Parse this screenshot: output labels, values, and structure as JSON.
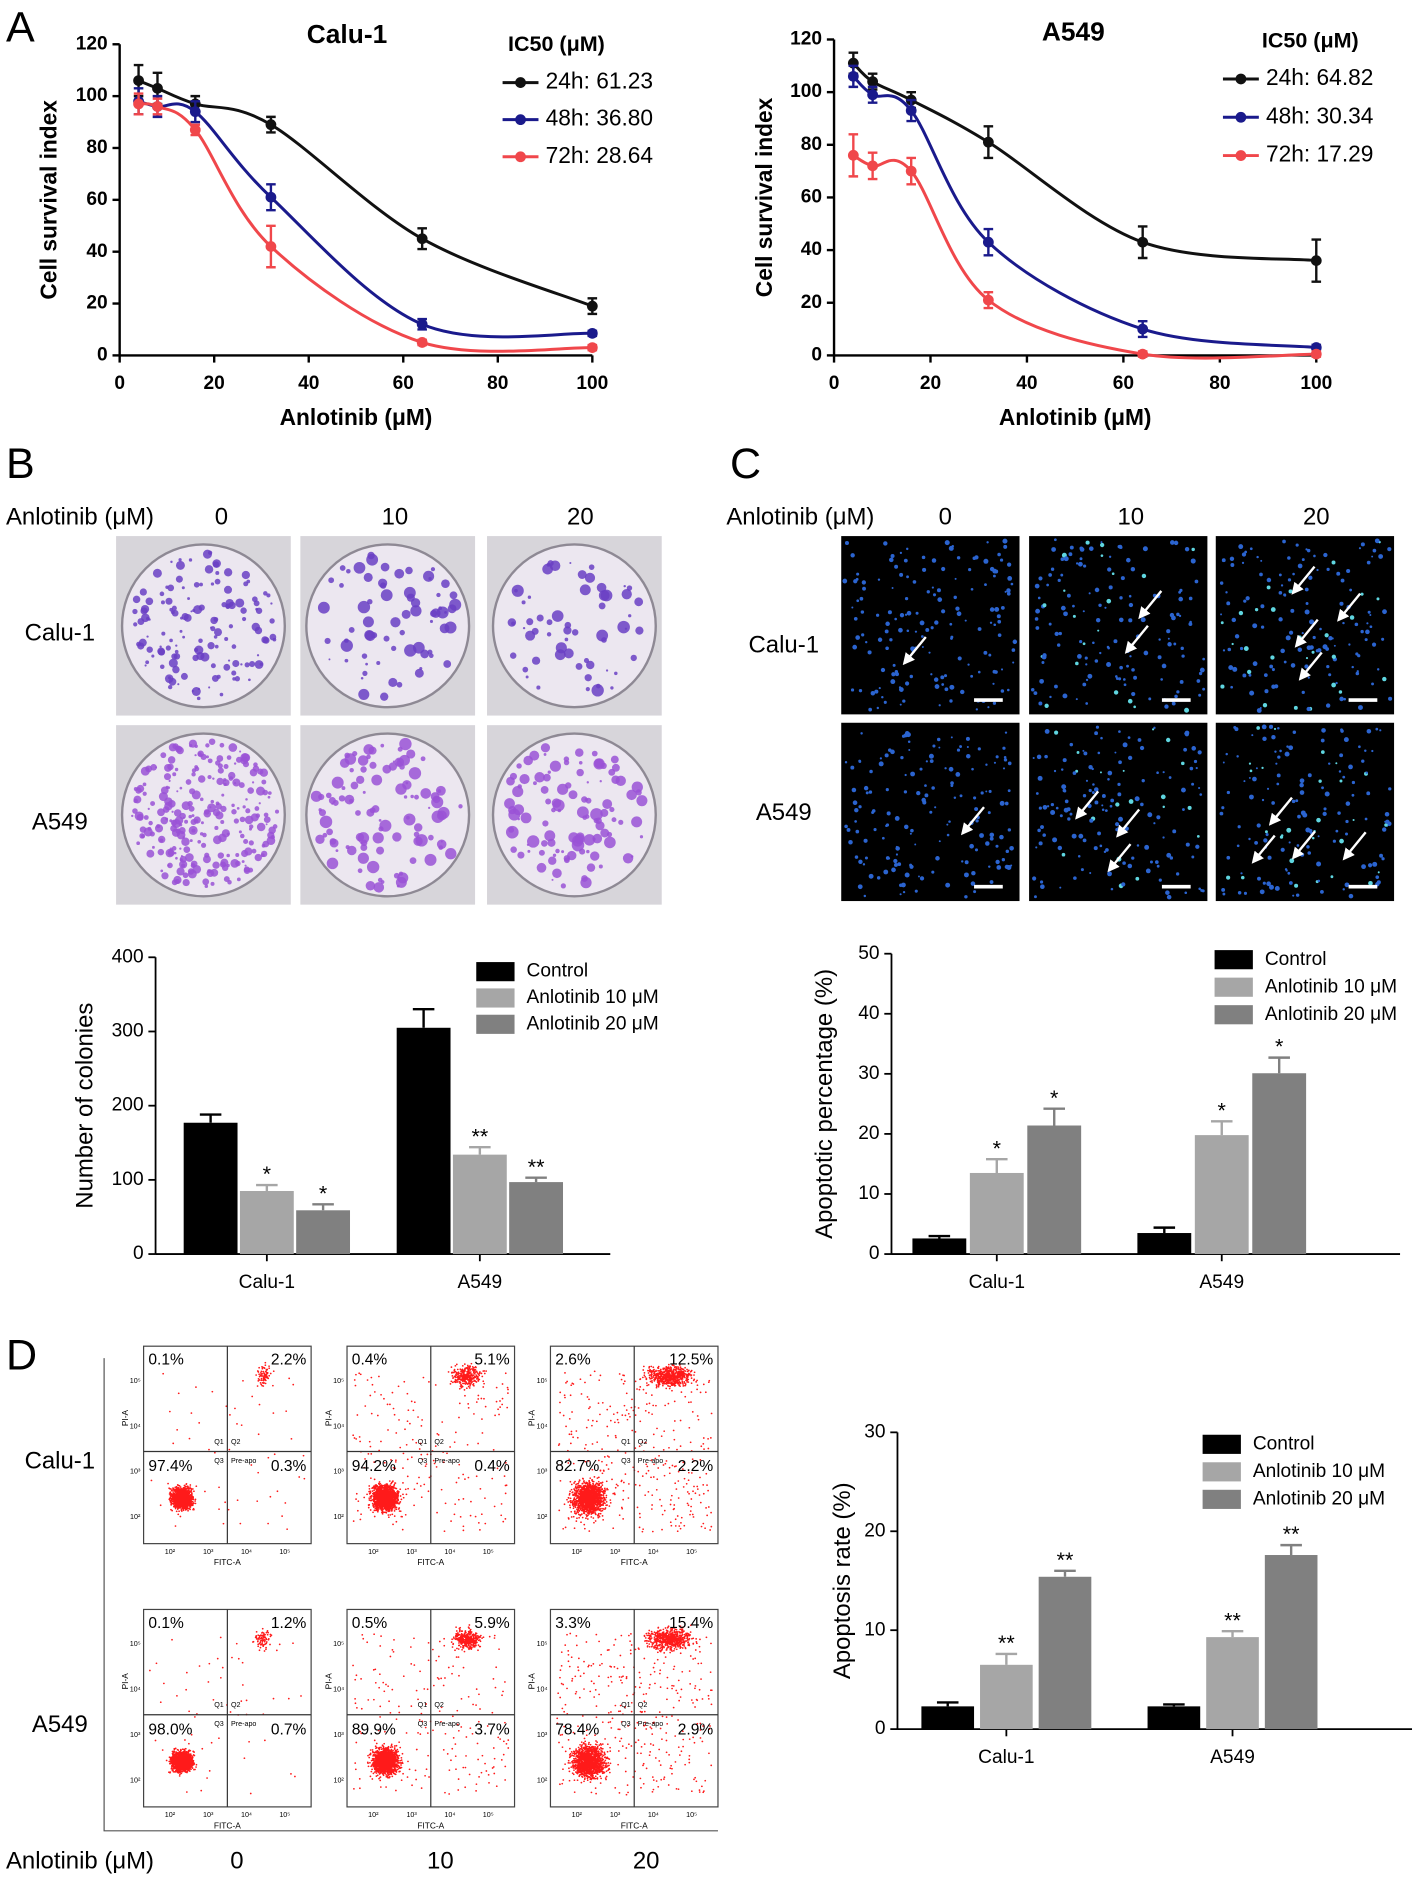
{
  "panel_labels": [
    "A",
    "B",
    "C",
    "D"
  ],
  "chart_data": [
    {
      "type": "line",
      "title": "Calu-1",
      "legend_title": "IC50 (μM)",
      "xlabel": "Anlotinib (μM)",
      "ylabel": "Cell survival index",
      "x": [
        4,
        8,
        16,
        32,
        64,
        100
      ],
      "xlim": [
        0,
        100
      ],
      "xticks": [
        0,
        20,
        40,
        60,
        80,
        100
      ],
      "ylim": [
        0,
        120
      ],
      "yticks": [
        0,
        20,
        40,
        60,
        80,
        100,
        120
      ],
      "series": [
        {
          "name": "24h: 61.23",
          "color": "#111111",
          "values": [
            106,
            103,
            97,
            89,
            45,
            19
          ],
          "errors": [
            6,
            6,
            3,
            3,
            4,
            3
          ]
        },
        {
          "name": "48h: 36.80",
          "color": "#1a1a8c",
          "values": [
            98,
            96,
            94,
            61,
            12,
            8.5
          ],
          "errors": [
            5,
            4,
            4,
            5,
            2,
            1
          ]
        },
        {
          "name": "72h: 28.64",
          "color": "#f0474b",
          "values": [
            97,
            96,
            87,
            42,
            5,
            3
          ],
          "errors": [
            4,
            3,
            2,
            8,
            1,
            1
          ]
        }
      ]
    },
    {
      "type": "line",
      "title": "A549",
      "legend_title": "IC50 (μM)",
      "xlabel": "Anlotinib (μM)",
      "ylabel": "Cell survival index",
      "x": [
        4,
        8,
        16,
        32,
        64,
        100
      ],
      "xlim": [
        0,
        100
      ],
      "xticks": [
        0,
        20,
        40,
        60,
        80,
        100
      ],
      "ylim": [
        0,
        120
      ],
      "yticks": [
        0,
        20,
        40,
        60,
        80,
        100,
        120
      ],
      "series": [
        {
          "name": "24h: 64.82",
          "color": "#111111",
          "values": [
            111,
            104,
            97,
            81,
            43,
            36
          ],
          "errors": [
            4,
            3,
            3,
            6,
            6,
            8
          ]
        },
        {
          "name": "48h: 30.34",
          "color": "#1a1a8c",
          "values": [
            106,
            99,
            93,
            43,
            10,
            3
          ],
          "errors": [
            4,
            3,
            4,
            5,
            3,
            1
          ]
        },
        {
          "name": "72h: 17.29",
          "color": "#f0474b",
          "values": [
            76,
            72,
            70,
            21,
            0.5,
            0.5
          ],
          "errors": [
            8,
            5,
            5,
            3,
            1,
            1
          ]
        }
      ]
    },
    {
      "type": "bar",
      "ylabel": "Number of colonies",
      "categories": [
        "Calu-1",
        "A549"
      ],
      "ylim": [
        0,
        400
      ],
      "yticks": [
        0,
        100,
        200,
        300,
        400
      ],
      "series": [
        {
          "name": "Control",
          "color": "#000000",
          "values": [
            177,
            305
          ],
          "errors": [
            11,
            25
          ]
        },
        {
          "name": "Anlotinib 10 μM",
          "color": "#a6a6a6",
          "values": [
            85,
            134
          ],
          "errors": [
            8,
            10
          ],
          "annotations": [
            "*",
            "**"
          ]
        },
        {
          "name": "Anlotinib 20 μM",
          "color": "#808080",
          "values": [
            59,
            97
          ],
          "errors": [
            8,
            6
          ],
          "annotations": [
            "*",
            "**"
          ]
        }
      ]
    },
    {
      "type": "bar",
      "ylabel": "Apoptotic percentage (%)",
      "categories": [
        "Calu-1",
        "A549"
      ],
      "ylim": [
        0,
        50
      ],
      "yticks": [
        0,
        10,
        20,
        30,
        40,
        50
      ],
      "series": [
        {
          "name": "Control",
          "color": "#000000",
          "values": [
            2.6,
            3.5
          ],
          "errors": [
            0.4,
            0.9
          ]
        },
        {
          "name": "Anlotinib 10 μM",
          "color": "#a6a6a6",
          "values": [
            13.5,
            19.8
          ],
          "errors": [
            2.3,
            2.3
          ],
          "annotations": [
            "*",
            "*"
          ]
        },
        {
          "name": "Anlotinib 20 μM",
          "color": "#808080",
          "values": [
            21.4,
            30.1
          ],
          "errors": [
            2.8,
            2.6
          ],
          "annotations": [
            "*",
            "*"
          ]
        }
      ]
    },
    {
      "type": "bar",
      "ylabel": "Apoptosis rate (%)",
      "categories": [
        "Calu-1",
        "A549"
      ],
      "ylim": [
        0,
        30
      ],
      "yticks": [
        0,
        10,
        20,
        30
      ],
      "series": [
        {
          "name": "Control",
          "color": "#000000",
          "values": [
            2.3,
            2.3
          ],
          "errors": [
            0.4,
            0.2
          ]
        },
        {
          "name": "Anlotinib 10 μM",
          "color": "#a6a6a6",
          "values": [
            6.5,
            9.3
          ],
          "errors": [
            1.1,
            0.6
          ],
          "annotations": [
            "**",
            "**"
          ]
        },
        {
          "name": "Anlotinib 20 μM",
          "color": "#808080",
          "values": [
            15.4,
            17.6
          ],
          "errors": [
            0.6,
            1.0
          ],
          "annotations": [
            "**",
            "**"
          ]
        }
      ]
    }
  ],
  "colony_images": {
    "axis_label": "Anlotinib (μM)",
    "columns": [
      "0",
      "10",
      "20"
    ],
    "rows": [
      "Calu-1",
      "A549"
    ]
  },
  "fluorescence_images": {
    "axis_label": "Anlotinib (μM)",
    "columns": [
      "0",
      "10",
      "20"
    ],
    "rows": [
      "Calu-1",
      "A549"
    ]
  },
  "flow_cytometry": {
    "axis_label": "Anlotinib (μM)",
    "columns": [
      "0",
      "10",
      "20"
    ],
    "gate_labels": [
      "Q1",
      "Q2",
      "Q3",
      "Pre-apo"
    ],
    "x_axis_label": "FITC-A",
    "y_axis_label": "PI-A",
    "axis_ticks": [
      "10²",
      "10³",
      "10⁴",
      "10⁵"
    ],
    "rows": [
      {
        "label": "Calu-1",
        "plots": [
          [
            "0.1%",
            "2.2%",
            "97.4%",
            "0.3%"
          ],
          [
            "0.4%",
            "5.1%",
            "94.2%",
            "0.4%"
          ],
          [
            "2.6%",
            "12.5%",
            "82.7%",
            "2.2%"
          ]
        ]
      },
      {
        "label": "A549",
        "plots": [
          [
            "0.1%",
            "1.2%",
            "98.0%",
            "0.7%"
          ],
          [
            "0.5%",
            "5.9%",
            "89.9%",
            "3.7%"
          ],
          [
            "3.3%",
            "15.4%",
            "78.4%",
            "2.9%"
          ]
        ]
      }
    ]
  }
}
